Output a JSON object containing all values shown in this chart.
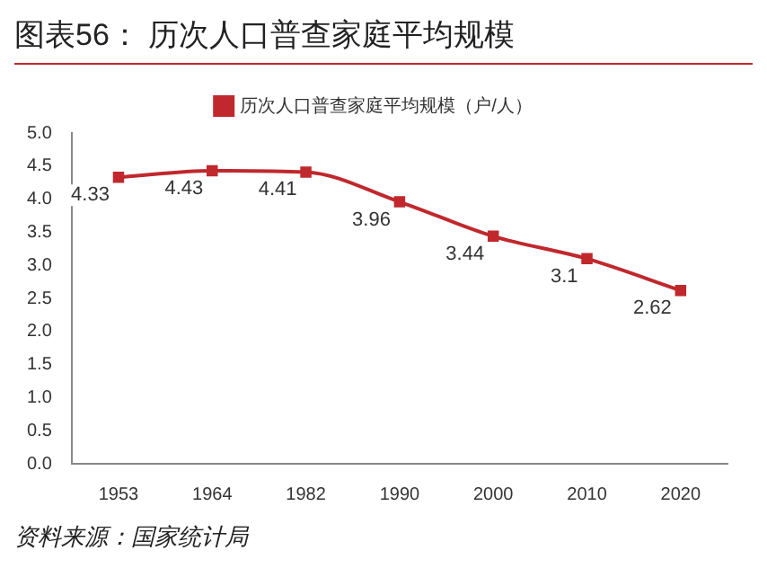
{
  "chart_data": {
    "type": "line",
    "title": "图表56：  历次人口普查家庭平均规模",
    "categories": [
      "1953",
      "1964",
      "1982",
      "1990",
      "2000",
      "2010",
      "2020"
    ],
    "series": [
      {
        "name": "历次人口普查家庭平均规模（户/人）",
        "color": "#c0282d",
        "values": [
          4.33,
          4.43,
          4.41,
          3.96,
          3.44,
          3.1,
          2.62
        ]
      }
    ],
    "ylim": [
      0,
      5
    ],
    "yticks": [
      {
        "value": 0,
        "label": "0.0"
      },
      0.5,
      {
        "value": 1,
        "label": "1.0"
      },
      1.5,
      {
        "value": 2,
        "label": "2.0"
      },
      2.5,
      {
        "value": 3,
        "label": "3.0"
      },
      3.5,
      {
        "value": 4,
        "label": "4.0"
      },
      4.5,
      {
        "value": 5,
        "label": "5.0"
      }
    ],
    "data_labels": true,
    "legend": "top",
    "grid": false,
    "marker": "square",
    "line_style": "solid",
    "annotations": [
      "资料来源：国家统计局"
    ]
  }
}
